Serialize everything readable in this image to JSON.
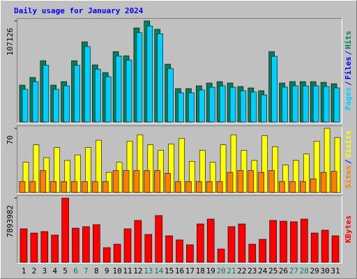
{
  "title": "Daily usage for January 2024",
  "chart_data": [
    {
      "type": "bar",
      "categories": [
        "1",
        "2",
        "3",
        "4",
        "5",
        "6",
        "7",
        "8",
        "9",
        "10",
        "11",
        "12",
        "13",
        "14",
        "15",
        "16",
        "17",
        "18",
        "19",
        "20",
        "21",
        "22",
        "23",
        "24",
        "25",
        "26",
        "27",
        "28",
        "29",
        "30",
        "31"
      ],
      "category_colors": [
        "#000000",
        "#000000",
        "#000000",
        "#000000",
        "#000000",
        "#00805c",
        "#00805c",
        "#000000",
        "#000000",
        "#000000",
        "#000000",
        "#000000",
        "#00805c",
        "#00805c",
        "#000000",
        "#000000",
        "#000000",
        "#000000",
        "#000000",
        "#00805c",
        "#00805c",
        "#000000",
        "#000000",
        "#000000",
        "#000000",
        "#000000",
        "#00805c",
        "#00805c",
        "#000000",
        "#000000",
        "#000000"
      ],
      "series": [
        {
          "name": "Hits",
          "color": "#00805c",
          "values": [
            39150,
            47280,
            65000,
            39150,
            42850,
            65000,
            84960,
            60580,
            52450,
            74620,
            70190,
            99740,
            107126,
            98260,
            61320,
            35460,
            35460,
            38420,
            41370,
            42850,
            41370,
            37680,
            36200,
            33250,
            74620,
            41370,
            42850,
            42850,
            42850,
            42110,
            40630
          ]
        },
        {
          "name": "Pages",
          "color": "#00d0ff",
          "values": [
            34700,
            42800,
            60200,
            34700,
            38400,
            60000,
            79900,
            56000,
            48000,
            70000,
            65700,
            94700,
            101800,
            93500,
            56800,
            31000,
            31000,
            34000,
            36900,
            38400,
            36900,
            33200,
            31800,
            28800,
            69600,
            37000,
            38400,
            38400,
            38400,
            37700,
            36200
          ]
        }
      ],
      "legend_only": [
        {
          "name": "Files",
          "color": "#0000ff"
        }
      ],
      "separator": "/",
      "ylim": [
        0,
        107126
      ],
      "yticks": [
        107126
      ]
    },
    {
      "type": "bar",
      "series": [
        {
          "name": "Visits",
          "color": "#ffff00",
          "values": [
            33,
            52,
            38,
            49,
            35,
            41,
            49,
            57,
            22,
            33,
            56,
            63,
            52,
            46,
            53,
            59,
            34,
            46,
            33,
            52,
            63,
            46,
            35,
            62,
            50,
            30,
            35,
            42,
            56,
            70,
            60
          ]
        },
        {
          "name": "Sites",
          "color": "#ff8000",
          "values": [
            12,
            12,
            24,
            12,
            12,
            12,
            12,
            12,
            12,
            24,
            24,
            24,
            24,
            24,
            21,
            12,
            12,
            12,
            12,
            12,
            22,
            24,
            24,
            22,
            24,
            12,
            12,
            12,
            15,
            22,
            23
          ]
        }
      ],
      "separator": "/",
      "ylim": [
        0,
        70
      ],
      "yticks": [
        70
      ]
    },
    {
      "type": "bar",
      "series": [
        {
          "name": "KBytes",
          "color": "#ff0000",
          "values": [
            4120000,
            3600000,
            3780000,
            3350000,
            7893982,
            4200000,
            4380000,
            4630000,
            1800000,
            2230000,
            4120000,
            5150000,
            3430000,
            5750000,
            3260000,
            2750000,
            2150000,
            4720000,
            5320000,
            1630000,
            4380000,
            4720000,
            2230000,
            2830000,
            5150000,
            5060000,
            4980000,
            5320000,
            3600000,
            3950000,
            3260000
          ]
        }
      ],
      "ylim": [
        0,
        7893982
      ],
      "yticks": [
        7893982
      ]
    }
  ]
}
